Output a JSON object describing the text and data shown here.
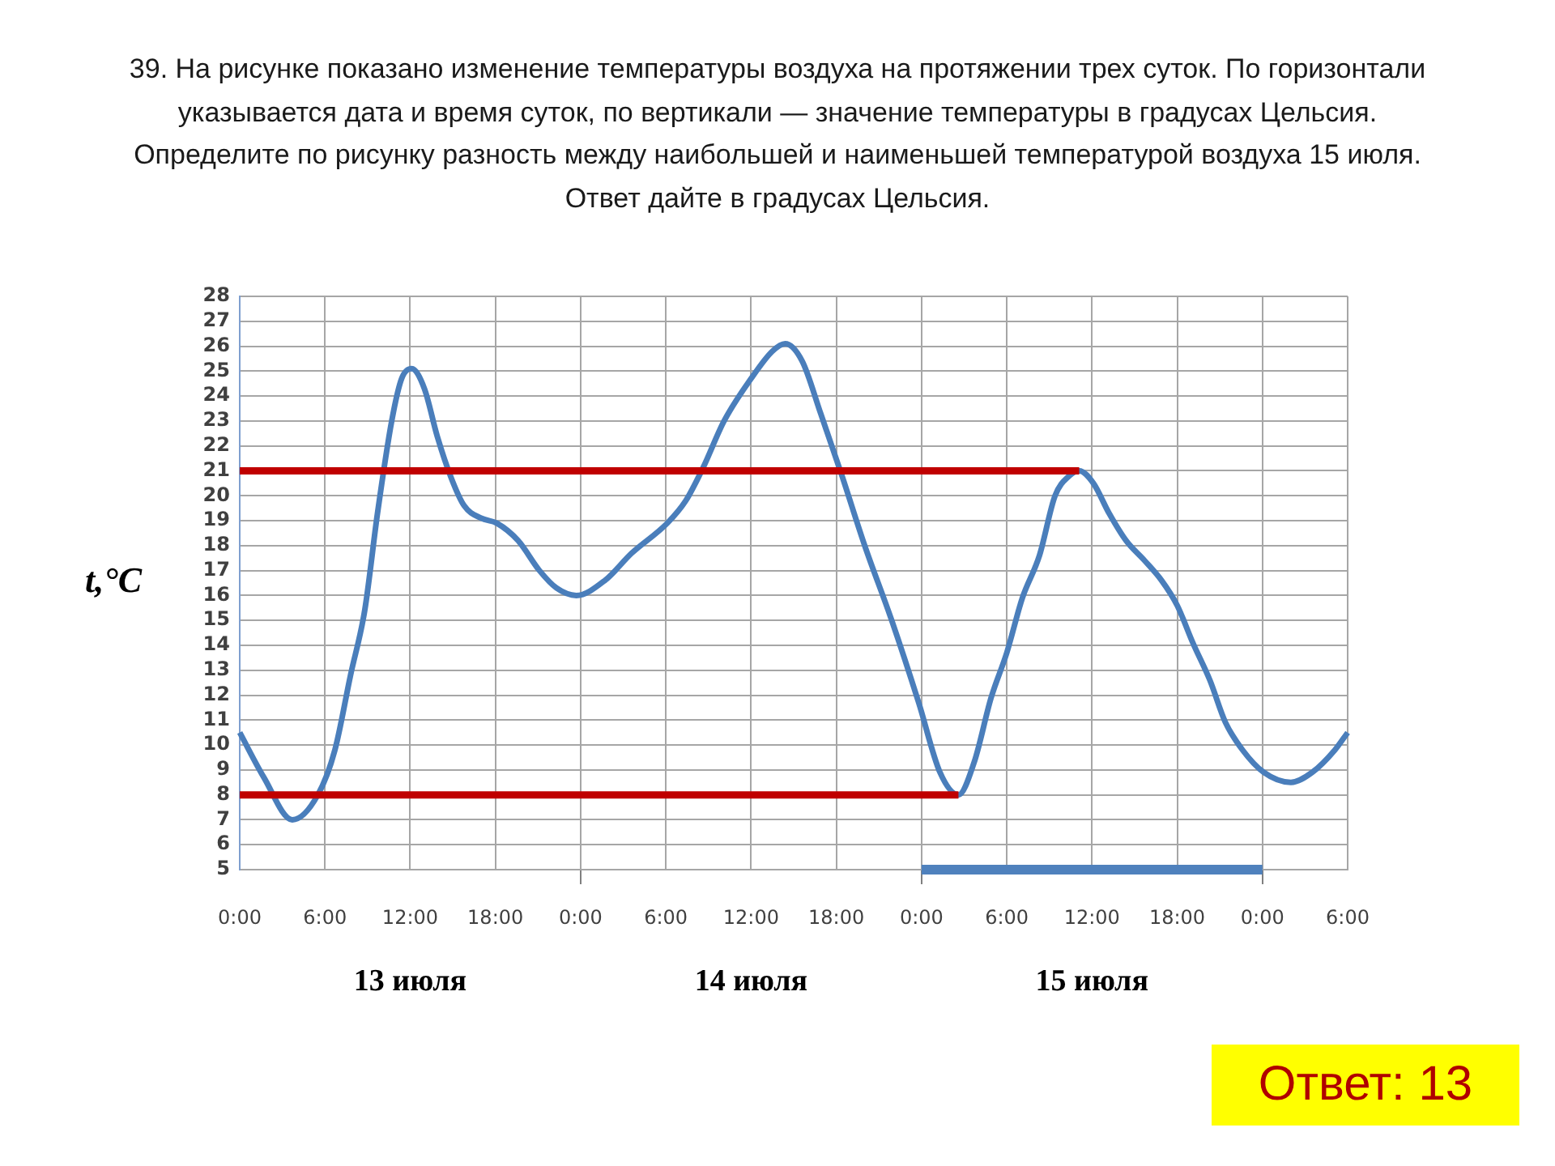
{
  "chart_data": {
    "type": "line",
    "title": "39. На рисунке показано изменение температуры воздуха на протяжении трех суток. По горизонтали указывается дата и время суток, по вертикали — значение температуры в градусах Цельсия. Определите по рисунку разность между наибольшей и наименьшей температурой воздуха 15 июля. Ответ дайте в градусах Цельсия.",
    "ylabel": "t,°C",
    "annotations": [
      "Ответ: 13"
    ],
    "xlim": [
      "--07-13T00:00",
      "--07-16T06:00"
    ],
    "xticks": [
      {
        "value": "--07-13T00:00",
        "label": "0:00"
      },
      {
        "value": "--07-13T06:00",
        "label": "6:00"
      },
      {
        "value": "--07-13T12:00",
        "label": "12:00"
      },
      {
        "value": "--07-13T18:00",
        "label": "18:00"
      },
      {
        "value": "--07-14T00:00",
        "label": "0:00"
      },
      {
        "value": "--07-14T06:00",
        "label": "6:00"
      },
      {
        "value": "--07-14T12:00",
        "label": "12:00"
      },
      {
        "value": "--07-14T18:00",
        "label": "18:00"
      },
      {
        "value": "--07-15T00:00",
        "label": "0:00"
      },
      {
        "value": "--07-15T06:00",
        "label": "6:00"
      },
      {
        "value": "--07-15T12:00",
        "label": "12:00"
      },
      {
        "value": "--07-15T18:00",
        "label": "18:00"
      },
      {
        "value": "--07-16T00:00",
        "label": "0:00"
      },
      {
        "value": "--07-16T06:00",
        "label": "6:00"
      }
    ],
    "x2lim": [
      "--07-13T00:00",
      "--07-16T06:00"
    ],
    "x2ticks": [
      {
        "value": "--07-13T12:00",
        "label": "13 июля"
      },
      {
        "value": "--07-14T12:00",
        "label": "14 июля"
      },
      {
        "value": "--07-15T12:00",
        "label": "15 июля"
      }
    ],
    "ylim": [
      5,
      28
    ],
    "yticks": [
      5,
      6,
      7,
      8,
      9,
      10,
      11,
      12,
      13,
      14,
      15,
      16,
      17,
      18,
      19,
      20,
      21,
      22,
      23,
      24,
      25,
      26,
      27,
      28
    ],
    "grid": true,
    "marker": "none",
    "series": [
      {
        "color": "#4a7ebb",
        "x": [
          "--07-13T00:00",
          "--07-13T01:42",
          "--07-13T03:42",
          "--07-13T05:30",
          "--07-13T06:42",
          "--07-13T07:48",
          "--07-13T08:48",
          "--07-13T09:42",
          "--07-13T10:42",
          "--07-13T11:24",
          "--07-13T12:06",
          "--07-13T13:00",
          "--07-13T13:54",
          "--07-13T14:54",
          "--07-13T15:48",
          "--07-13T17:00",
          "--07-13T18:06",
          "--07-13T19:36",
          "--07-13T21:06",
          "--07-13T22:18",
          "--07-13T23:42",
          "--07-14T01:42",
          "--07-14T03:36",
          "--07-14T06:06",
          "--07-14T07:24",
          "--07-14T08:36",
          "--07-14T10:06",
          "--07-14T12:00",
          "--07-14T13:30",
          "--07-14T14:24",
          "--07-14T15:36",
          "--07-14T16:54",
          "--07-14T18:24",
          "--07-14T20:00",
          "--07-14T21:54",
          "--07-14T23:48",
          "--07-15T01:18",
          "--07-15T02:36",
          "--07-15T03:42",
          "--07-15T04:54",
          "--07-15T06:00",
          "--07-15T07:06",
          "--07-15T08:18",
          "--07-15T09:24",
          "--07-15T10:24",
          "--07-15T11:06",
          "--07-15T12:06",
          "--07-15T13:12",
          "--07-15T14:24",
          "--07-15T15:42",
          "--07-15T16:54",
          "--07-15T18:00",
          "--07-15T19:06",
          "--07-15T20:18",
          "--07-15T21:24",
          "--07-15T22:36",
          "--07-16T00:06",
          "--07-16T02:00",
          "--07-16T03:30",
          "--07-16T05:06",
          "--07-16T06:00"
        ],
        "values": [
          10.5,
          8.7,
          7.0,
          8.0,
          9.8,
          12.8,
          15.4,
          19.3,
          23.0,
          24.7,
          25.1,
          24.3,
          22.4,
          20.7,
          19.6,
          19.1,
          18.9,
          18.2,
          17.0,
          16.3,
          16.0,
          16.6,
          17.7,
          18.9,
          19.8,
          21.1,
          23.0,
          24.7,
          25.8,
          26.1,
          25.4,
          23.3,
          20.8,
          18.0,
          15.0,
          11.7,
          8.9,
          8.0,
          9.3,
          11.9,
          13.7,
          15.9,
          17.6,
          20.0,
          20.8,
          21.0,
          20.5,
          19.3,
          18.2,
          17.4,
          16.6,
          15.6,
          14.1,
          12.6,
          10.9,
          9.8,
          8.9,
          8.5,
          8.9,
          9.8,
          10.5
        ]
      },
      {
        "type": "line",
        "color": "#c00000",
        "x": [
          "--07-13T00:00",
          "--07-15T11:06"
        ],
        "values": [
          21,
          21
        ]
      },
      {
        "type": "line",
        "color": "#c00000",
        "x": [
          "--07-13T00:00",
          "--07-15T02:36"
        ],
        "values": [
          8,
          8
        ]
      },
      {
        "type": "line",
        "color": "#4f81bd",
        "x": [
          "--07-15T00:00",
          "--07-16T00:00"
        ],
        "values": [
          5,
          5
        ]
      }
    ]
  }
}
